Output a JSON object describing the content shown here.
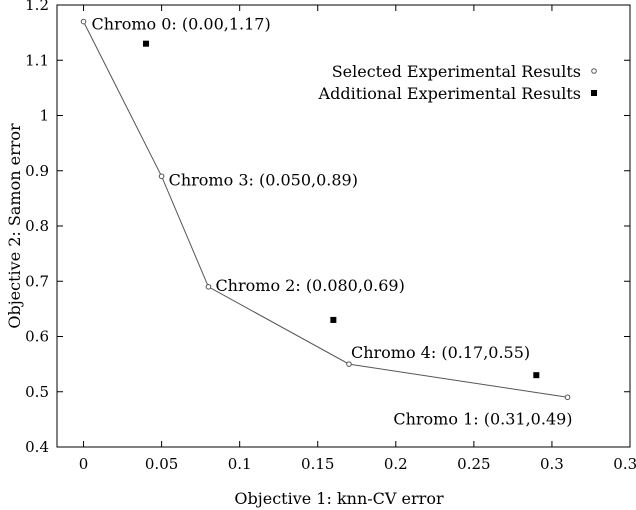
{
  "chart_data": {
    "type": "scatter",
    "xlabel": "Objective 1: knn-CV error",
    "ylabel": "Objective 2: Samon error",
    "xlim": [
      -0.017,
      0.35
    ],
    "ylim": [
      0.4,
      1.2
    ],
    "xticks": [
      "0",
      "0.05",
      "0.1",
      "0.15",
      "0.2",
      "0.25",
      "0.3",
      "0.35"
    ],
    "yticks": [
      "0.4",
      "0.5",
      "0.6",
      "0.7",
      "0.8",
      "0.9",
      "1",
      "1.1",
      "1.2"
    ],
    "grid": false,
    "legend_position": "top-right",
    "series": [
      {
        "name": "Selected Experimental Results",
        "marker": "open-circle",
        "connected": true,
        "color": "#555555",
        "points": [
          {
            "x": 0.0,
            "y": 1.17,
            "label": "Chromo 0: (0.00,1.17)"
          },
          {
            "x": 0.05,
            "y": 0.89,
            "label": "Chromo 3: (0.050,0.89)"
          },
          {
            "x": 0.08,
            "y": 0.69,
            "label": "Chromo 2: (0.080,0.69)"
          },
          {
            "x": 0.17,
            "y": 0.55,
            "label": "Chromo 4: (0.17,0.55)"
          },
          {
            "x": 0.31,
            "y": 0.49,
            "label": "Chromo 1: (0.31,0.49)"
          }
        ]
      },
      {
        "name": "Additional Experimental Results",
        "marker": "filled-square",
        "connected": false,
        "color": "#000000",
        "points": [
          {
            "x": 0.04,
            "y": 1.13
          },
          {
            "x": 0.16,
            "y": 0.63
          },
          {
            "x": 0.29,
            "y": 0.53
          }
        ]
      }
    ]
  }
}
